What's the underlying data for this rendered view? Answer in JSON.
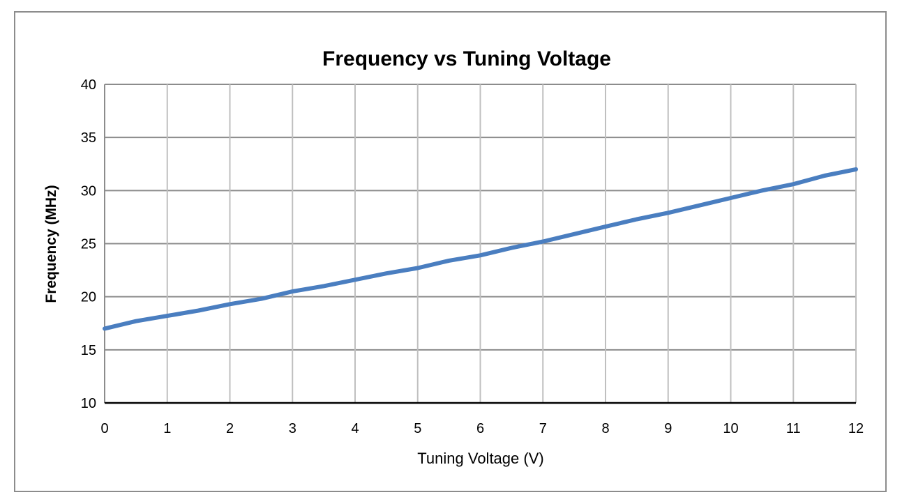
{
  "chart_data": {
    "type": "line",
    "title": "Frequency vs Tuning Voltage",
    "xlabel": "Tuning Voltage (V)",
    "ylabel": "Frequency (MHz)",
    "xlim": [
      0,
      12
    ],
    "ylim": [
      10,
      40
    ],
    "x_ticks": [
      0,
      1,
      2,
      3,
      4,
      5,
      6,
      7,
      8,
      9,
      10,
      11,
      12
    ],
    "y_ticks": [
      10,
      15,
      20,
      25,
      30,
      35,
      40
    ],
    "grid": true,
    "legend": "none",
    "colors": {
      "line": "#4a7ec0",
      "grid": "#bfbfbf",
      "axis": "#000000",
      "frame": "#8c8c8c"
    },
    "series": [
      {
        "x": [
          0,
          0.5,
          1,
          1.5,
          2,
          2.5,
          3,
          3.5,
          4,
          4.5,
          5,
          5.5,
          6,
          6.5,
          7,
          7.5,
          8,
          8.5,
          9,
          9.5,
          10,
          10.5,
          11,
          11.5,
          12
        ],
        "y": [
          17.0,
          17.7,
          18.2,
          18.7,
          19.3,
          19.8,
          20.5,
          21.0,
          21.6,
          22.2,
          22.7,
          23.4,
          23.9,
          24.6,
          25.2,
          25.9,
          26.6,
          27.3,
          27.9,
          28.6,
          29.3,
          30.0,
          30.6,
          31.4,
          32.0
        ]
      }
    ]
  }
}
